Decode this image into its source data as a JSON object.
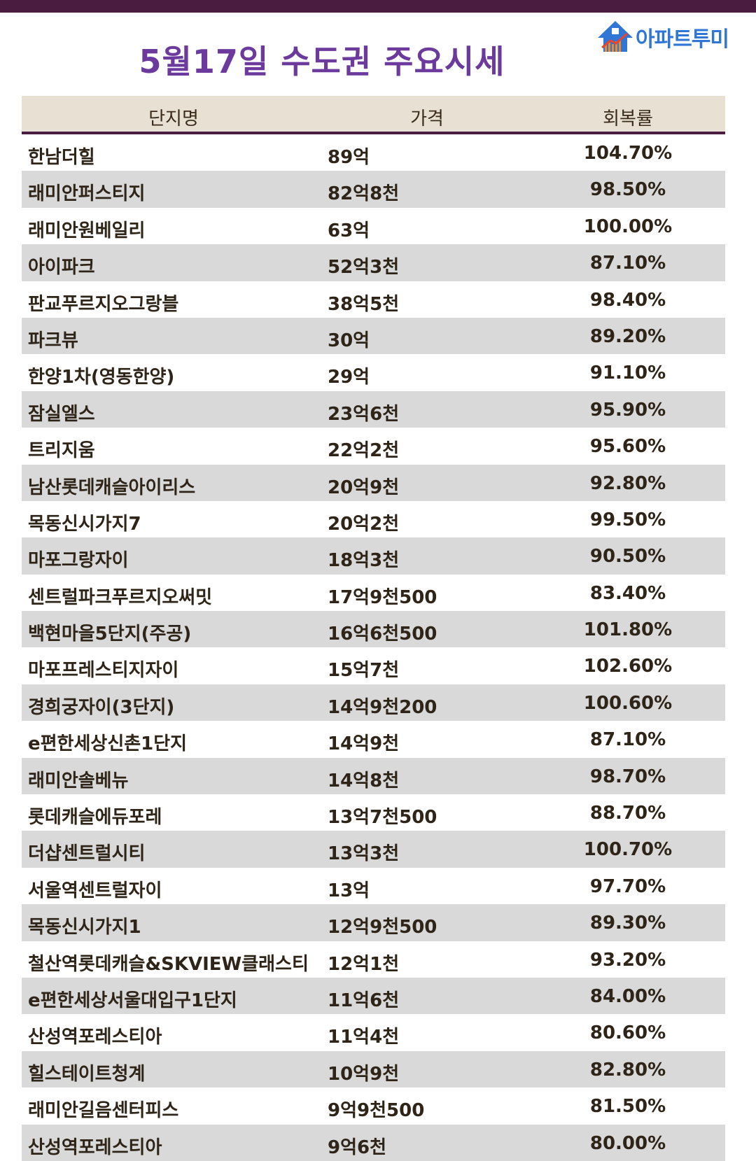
{
  "title": "5월17일 수도권 주요시세",
  "logo": {
    "text": "아파트투미",
    "icon": "house-chart-icon"
  },
  "colors": {
    "top_bar": "#4a1c40",
    "title": "#6b3a9c",
    "header_bg": "#e8e0d3",
    "stripe": "#d9d9d9",
    "logo": "#2f76d6"
  },
  "table": {
    "headers": [
      "단지명",
      "가격",
      "회복률"
    ],
    "rows": [
      [
        "한남더힐",
        "89억",
        "104.70%"
      ],
      [
        "래미안퍼스티지",
        "82억8천",
        "98.50%"
      ],
      [
        "래미안원베일리",
        "63억",
        "100.00%"
      ],
      [
        "아이파크",
        "52억3천",
        "87.10%"
      ],
      [
        "판교푸르지오그랑블",
        "38억5천",
        "98.40%"
      ],
      [
        "파크뷰",
        "30억",
        "89.20%"
      ],
      [
        "한양1차(영동한양)",
        "29억",
        "91.10%"
      ],
      [
        "잠실엘스",
        "23억6천",
        "95.90%"
      ],
      [
        "트리지움",
        "22억2천",
        "95.60%"
      ],
      [
        "남산롯데캐슬아이리스",
        "20억9천",
        "92.80%"
      ],
      [
        "목동신시가지7",
        "20억2천",
        "99.50%"
      ],
      [
        "마포그랑자이",
        "18억3천",
        "90.50%"
      ],
      [
        "센트럴파크푸르지오써밋",
        "17억9천500",
        "83.40%"
      ],
      [
        "백현마을5단지(주공)",
        "16억6천500",
        "101.80%"
      ],
      [
        "마포프레스티지자이",
        "15억7천",
        "102.60%"
      ],
      [
        "경희궁자이(3단지)",
        "14억9천200",
        "100.60%"
      ],
      [
        "e편한세상신촌1단지",
        "14억9천",
        "87.10%"
      ],
      [
        "래미안솔베뉴",
        "14억8천",
        "98.70%"
      ],
      [
        "롯데캐슬에듀포레",
        "13억7천500",
        "88.70%"
      ],
      [
        "더샵센트럴시티",
        "13억3천",
        "100.70%"
      ],
      [
        "서울역센트럴자이",
        "13억",
        "97.70%"
      ],
      [
        "목동신시가지1",
        "12억9천500",
        "89.30%"
      ],
      [
        "철산역롯데캐슬&SKVIEW클래스티",
        "12억1천",
        "93.20%"
      ],
      [
        "e편한세상서울대입구1단지",
        "11억6천",
        "84.00%"
      ],
      [
        "산성역포레스티아",
        "11억4천",
        "80.60%"
      ],
      [
        "힐스테이트청계",
        "10억9천",
        "82.80%"
      ],
      [
        "래미안길음센터피스",
        "9억9천500",
        "81.50%"
      ],
      [
        "산성역포레스티아",
        "9억6천",
        "80.00%"
      ]
    ]
  }
}
